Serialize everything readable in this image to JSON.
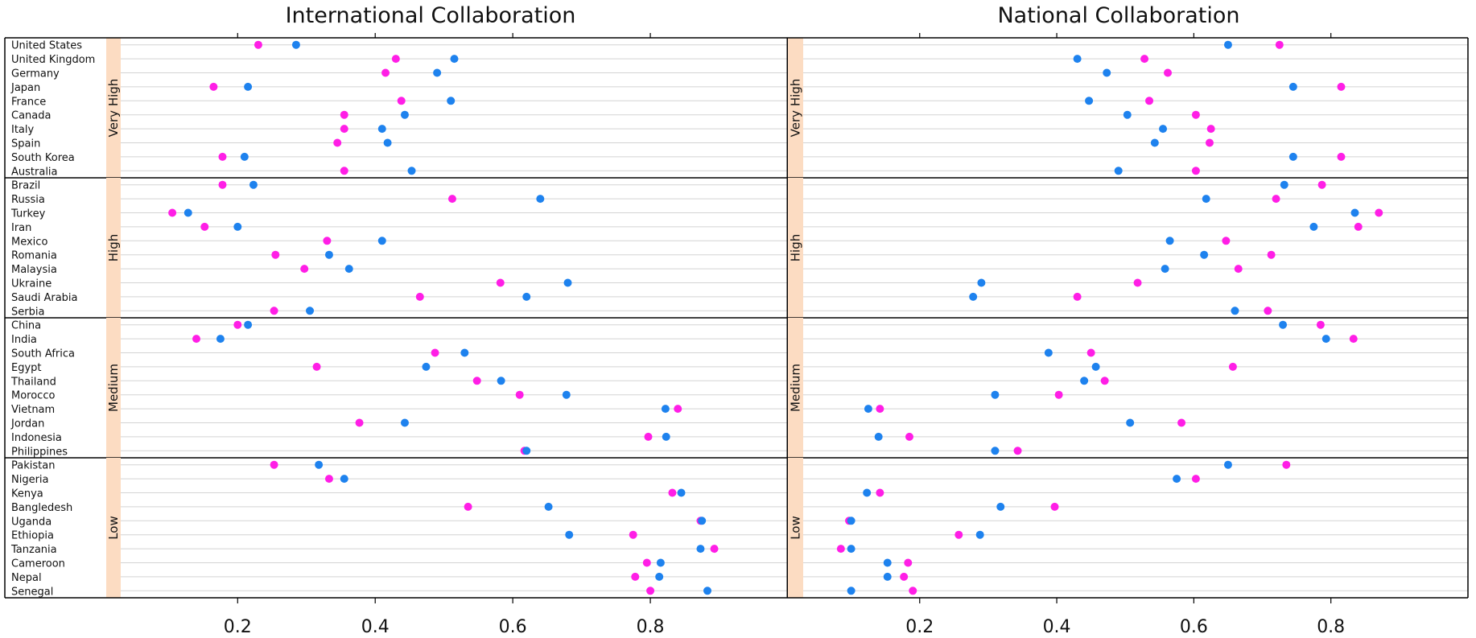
{
  "chart_data": {
    "type": "scatter",
    "panels": [
      {
        "title": "International Collaboration",
        "groups": [
          {
            "name": "Very High",
            "rows": [
              {
                "country": "United States",
                "pink": 0.23,
                "blue": 0.285
              },
              {
                "country": "United Kingdom",
                "pink": 0.43,
                "blue": 0.515
              },
              {
                "country": "Germany",
                "pink": 0.415,
                "blue": 0.49
              },
              {
                "country": "Japan",
                "pink": 0.165,
                "blue": 0.215
              },
              {
                "country": "France",
                "pink": 0.438,
                "blue": 0.51
              },
              {
                "country": "Canada",
                "pink": 0.355,
                "blue": 0.443
              },
              {
                "country": "Italy",
                "pink": 0.355,
                "blue": 0.41
              },
              {
                "country": "Spain",
                "pink": 0.345,
                "blue": 0.418
              },
              {
                "country": "South Korea",
                "pink": 0.178,
                "blue": 0.21
              },
              {
                "country": "Australia",
                "pink": 0.355,
                "blue": 0.453
              }
            ]
          },
          {
            "name": "High",
            "rows": [
              {
                "country": "Brazil",
                "pink": 0.178,
                "blue": 0.223
              },
              {
                "country": "Russia",
                "pink": 0.512,
                "blue": 0.64
              },
              {
                "country": "Turkey",
                "pink": 0.105,
                "blue": 0.128
              },
              {
                "country": "Iran",
                "pink": 0.152,
                "blue": 0.2
              },
              {
                "country": "Mexico",
                "pink": 0.33,
                "blue": 0.41
              },
              {
                "country": "Romania",
                "pink": 0.255,
                "blue": 0.333
              },
              {
                "country": "Malaysia",
                "pink": 0.297,
                "blue": 0.362
              },
              {
                "country": "Ukraine",
                "pink": 0.582,
                "blue": 0.68
              },
              {
                "country": "Saudi Arabia",
                "pink": 0.465,
                "blue": 0.62
              },
              {
                "country": "Serbia",
                "pink": 0.253,
                "blue": 0.305
              }
            ]
          },
          {
            "name": "Medium",
            "rows": [
              {
                "country": "China",
                "pink": 0.2,
                "blue": 0.215
              },
              {
                "country": "India",
                "pink": 0.14,
                "blue": 0.175
              },
              {
                "country": "South Africa",
                "pink": 0.487,
                "blue": 0.53
              },
              {
                "country": "Egypt",
                "pink": 0.315,
                "blue": 0.474
              },
              {
                "country": "Thailand",
                "pink": 0.548,
                "blue": 0.583
              },
              {
                "country": "Morocco",
                "pink": 0.61,
                "blue": 0.678
              },
              {
                "country": "Vietnam",
                "pink": 0.84,
                "blue": 0.822
              },
              {
                "country": "Jordan",
                "pink": 0.377,
                "blue": 0.443
              },
              {
                "country": "Indonesia",
                "pink": 0.797,
                "blue": 0.823
              },
              {
                "country": "Philippines",
                "pink": 0.617,
                "blue": 0.62
              }
            ]
          },
          {
            "name": "Low",
            "rows": [
              {
                "country": "Pakistan",
                "pink": 0.253,
                "blue": 0.318
              },
              {
                "country": "Nigeria",
                "pink": 0.333,
                "blue": 0.355
              },
              {
                "country": "Kenya",
                "pink": 0.832,
                "blue": 0.845
              },
              {
                "country": "Bangledesh",
                "pink": 0.535,
                "blue": 0.652
              },
              {
                "country": "Uganda",
                "pink": 0.873,
                "blue": 0.875
              },
              {
                "country": "Ethiopia",
                "pink": 0.775,
                "blue": 0.682
              },
              {
                "country": "Tanzania",
                "pink": 0.893,
                "blue": 0.873
              },
              {
                "country": "Cameroon",
                "pink": 0.795,
                "blue": 0.815
              },
              {
                "country": "Nepal",
                "pink": 0.778,
                "blue": 0.813
              },
              {
                "country": "Senegal",
                "pink": 0.8,
                "blue": 0.883
              }
            ]
          }
        ]
      },
      {
        "title": "National Collaboration",
        "groups": [
          {
            "name": "Very High",
            "rows": [
              {
                "country": "United States",
                "pink": 0.725,
                "blue": 0.65
              },
              {
                "country": "United Kingdom",
                "pink": 0.528,
                "blue": 0.43
              },
              {
                "country": "Germany",
                "pink": 0.562,
                "blue": 0.473
              },
              {
                "country": "Japan",
                "pink": 0.815,
                "blue": 0.745
              },
              {
                "country": "France",
                "pink": 0.535,
                "blue": 0.447
              },
              {
                "country": "Canada",
                "pink": 0.603,
                "blue": 0.503
              },
              {
                "country": "Italy",
                "pink": 0.625,
                "blue": 0.555
              },
              {
                "country": "Spain",
                "pink": 0.623,
                "blue": 0.543
              },
              {
                "country": "South Korea",
                "pink": 0.815,
                "blue": 0.745
              },
              {
                "country": "Australia",
                "pink": 0.603,
                "blue": 0.49
              }
            ]
          },
          {
            "name": "High",
            "rows": [
              {
                "country": "Brazil",
                "pink": 0.787,
                "blue": 0.732
              },
              {
                "country": "Russia",
                "pink": 0.72,
                "blue": 0.618
              },
              {
                "country": "Turkey",
                "pink": 0.87,
                "blue": 0.835
              },
              {
                "country": "Iran",
                "pink": 0.84,
                "blue": 0.775
              },
              {
                "country": "Mexico",
                "pink": 0.647,
                "blue": 0.565
              },
              {
                "country": "Romania",
                "pink": 0.713,
                "blue": 0.615
              },
              {
                "country": "Malaysia",
                "pink": 0.665,
                "blue": 0.558
              },
              {
                "country": "Ukraine",
                "pink": 0.518,
                "blue": 0.29
              },
              {
                "country": "Saudi Arabia",
                "pink": 0.43,
                "blue": 0.278
              },
              {
                "country": "Serbia",
                "pink": 0.708,
                "blue": 0.66
              }
            ]
          },
          {
            "name": "Medium",
            "rows": [
              {
                "country": "China",
                "pink": 0.785,
                "blue": 0.73
              },
              {
                "country": "India",
                "pink": 0.833,
                "blue": 0.793
              },
              {
                "country": "South Africa",
                "pink": 0.45,
                "blue": 0.388
              },
              {
                "country": "Egypt",
                "pink": 0.657,
                "blue": 0.457
              },
              {
                "country": "Thailand",
                "pink": 0.47,
                "blue": 0.44
              },
              {
                "country": "Morocco",
                "pink": 0.403,
                "blue": 0.31
              },
              {
                "country": "Vietnam",
                "pink": 0.142,
                "blue": 0.125
              },
              {
                "country": "Jordan",
                "pink": 0.582,
                "blue": 0.507
              },
              {
                "country": "Indonesia",
                "pink": 0.185,
                "blue": 0.14
              },
              {
                "country": "Philippines",
                "pink": 0.343,
                "blue": 0.31
              }
            ]
          },
          {
            "name": "Low",
            "rows": [
              {
                "country": "Pakistan",
                "pink": 0.735,
                "blue": 0.65
              },
              {
                "country": "Nigeria",
                "pink": 0.603,
                "blue": 0.575
              },
              {
                "country": "Kenya",
                "pink": 0.142,
                "blue": 0.123
              },
              {
                "country": "Bangledesh",
                "pink": 0.397,
                "blue": 0.318
              },
              {
                "country": "Uganda",
                "pink": 0.097,
                "blue": 0.1
              },
              {
                "country": "Ethiopia",
                "pink": 0.257,
                "blue": 0.288
              },
              {
                "country": "Tanzania",
                "pink": 0.085,
                "blue": 0.1
              },
              {
                "country": "Cameroon",
                "pink": 0.183,
                "blue": 0.153
              },
              {
                "country": "Nepal",
                "pink": 0.177,
                "blue": 0.153
              },
              {
                "country": "Senegal",
                "pink": 0.19,
                "blue": 0.1
              }
            ]
          }
        ]
      }
    ],
    "xlim": [
      0.03,
      1.0
    ],
    "xticks": [
      "0.2",
      "0.4",
      "0.6",
      "0.8"
    ],
    "grid": true,
    "legend": "none",
    "colors": {
      "pink": "#ff1ee6",
      "blue": "#1e82ee",
      "strip": "#fcdcc2",
      "grid": "#d3d3d3"
    }
  }
}
